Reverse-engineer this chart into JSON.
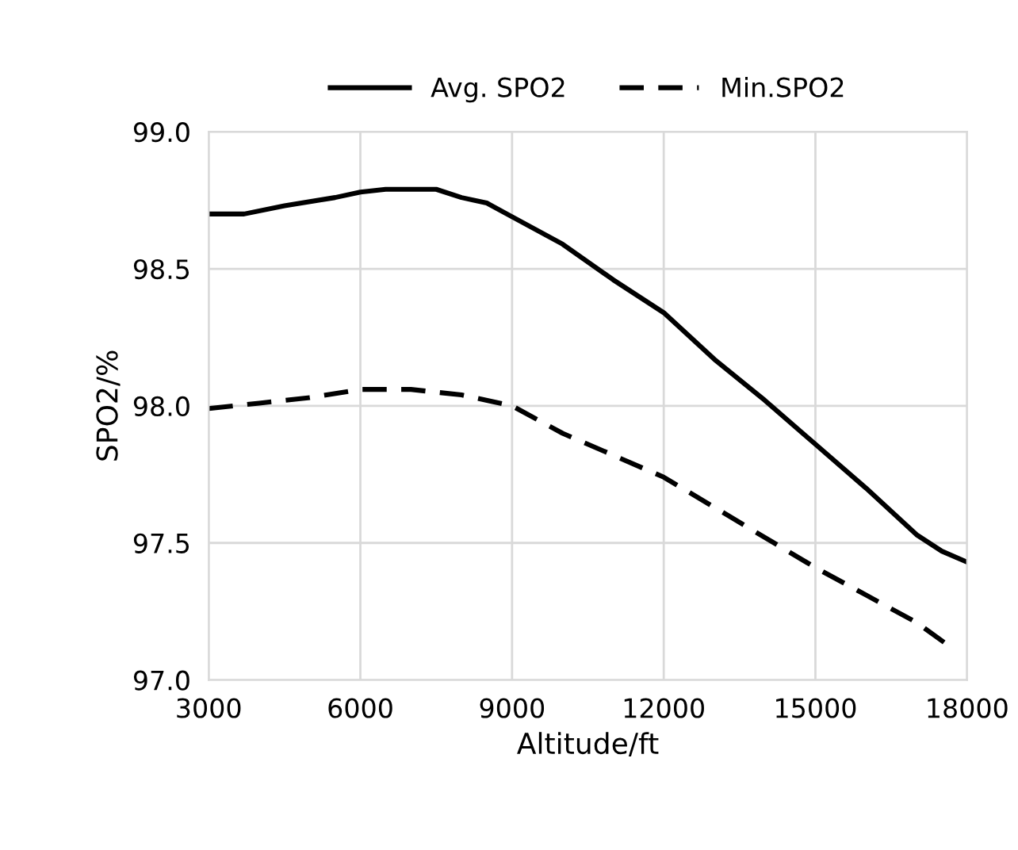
{
  "chart_data": {
    "type": "line",
    "xlabel": "Altitude/ft",
    "ylabel": "SPO2/%",
    "xlim": [
      3000,
      18000
    ],
    "xticks": [
      3000,
      6000,
      9000,
      12000,
      15000,
      18000
    ],
    "ylim": [
      97.0,
      99.0
    ],
    "yticks": [
      {
        "value": 97.0,
        "label": "97.0"
      },
      {
        "value": 97.5,
        "label": "97.5"
      },
      {
        "value": 98.0,
        "label": "98.0"
      },
      {
        "value": 98.5,
        "label": "98.5"
      },
      {
        "value": 99.0,
        "label": "99.0"
      }
    ],
    "grid": true,
    "legend": "top",
    "marker": "none",
    "series": [
      {
        "name": "Avg. SPO2",
        "color": "#000000",
        "line_style": "solid",
        "x": [
          3000,
          3700,
          4500,
          5500,
          6000,
          6500,
          7500,
          8000,
          8500,
          9000,
          10000,
          11000,
          12000,
          13000,
          14000,
          15000,
          16000,
          17000,
          17500,
          18000
        ],
        "values": [
          98.7,
          98.7,
          98.73,
          98.76,
          98.78,
          98.79,
          98.79,
          98.76,
          98.74,
          98.69,
          98.59,
          98.46,
          98.34,
          98.17,
          98.02,
          97.86,
          97.7,
          97.53,
          97.47,
          97.43
        ]
      },
      {
        "name": "Min.SPO2",
        "color": "#000000",
        "line_style": "dashed",
        "x": [
          3000,
          4000,
          5000,
          6000,
          7000,
          8000,
          9000,
          10000,
          11000,
          12000,
          13000,
          14000,
          15000,
          16000,
          17000,
          17600
        ],
        "values": [
          97.99,
          98.01,
          98.03,
          98.06,
          98.06,
          98.04,
          98.0,
          97.9,
          97.82,
          97.74,
          97.63,
          97.52,
          97.41,
          97.31,
          97.21,
          97.13
        ]
      }
    ]
  }
}
